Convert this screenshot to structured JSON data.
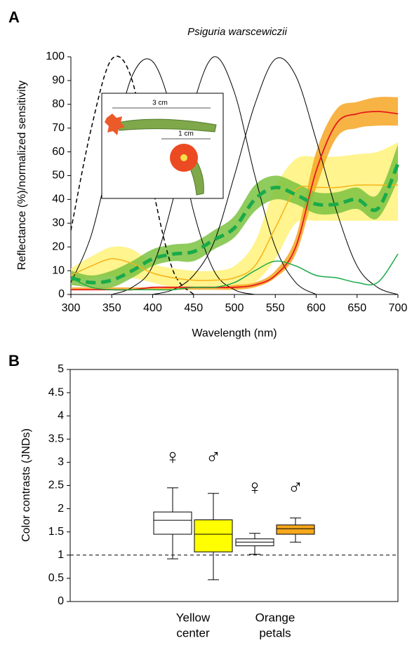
{
  "chart_data": [
    {
      "type": "line",
      "panel": "A",
      "title": "Psiguria warscewiczii",
      "xlabel": "Wavelength (nm)",
      "ylabel": "Reflectance (%)/normalized sensitivity",
      "x": [
        300,
        325,
        350,
        375,
        400,
        425,
        450,
        475,
        500,
        525,
        550,
        575,
        600,
        625,
        650,
        675,
        700
      ],
      "xlim": [
        300,
        700
      ],
      "xticks": [
        300,
        350,
        400,
        450,
        500,
        550,
        600,
        650,
        700
      ],
      "ylim": [
        0,
        100
      ],
      "yticks": [
        0,
        10,
        20,
        30,
        40,
        50,
        60,
        70,
        80,
        90,
        100
      ],
      "inset_labels": [
        "3 cm",
        "1 cm"
      ],
      "series": [
        {
          "color": "#000000",
          "dash": true,
          "width": 1.5,
          "values": [
            27,
            70,
            99,
            90,
            45,
            10,
            0,
            null,
            null,
            null,
            null,
            null,
            null,
            null,
            null,
            null,
            null
          ]
        },
        {
          "color": "#000000",
          "width": 1,
          "values": [
            5,
            25,
            60,
            92,
            98,
            75,
            35,
            10,
            2,
            0,
            null,
            null,
            null,
            null,
            null,
            null,
            null
          ]
        },
        {
          "color": "#000000",
          "width": 1,
          "values": [
            null,
            null,
            0,
            3,
            12,
            40,
            80,
            100,
            85,
            50,
            20,
            5,
            0,
            null,
            null,
            null,
            null
          ]
        },
        {
          "color": "#000000",
          "width": 1,
          "values": [
            null,
            null,
            null,
            null,
            0,
            2,
            8,
            22,
            50,
            80,
            99,
            92,
            65,
            35,
            12,
            3,
            0
          ]
        },
        {
          "color": "#f5b31a",
          "band_color": "#fff27a",
          "width": 1.5,
          "values": [
            8,
            12,
            15,
            13,
            9,
            7,
            6,
            6,
            7,
            12,
            28,
            44,
            45,
            45,
            46,
            46,
            46
          ],
          "lower": [
            5,
            7,
            8,
            7,
            5,
            3,
            3,
            3,
            3,
            5,
            15,
            30,
            31,
            31,
            31,
            31,
            31
          ],
          "upper": [
            11,
            16,
            20,
            19,
            13,
            11,
            10,
            10,
            12,
            22,
            45,
            57,
            58,
            58,
            59,
            60,
            64
          ]
        },
        {
          "color": "#e8191c",
          "band_color": "#f6a623",
          "width": 1.8,
          "values": [
            2,
            2,
            2,
            2,
            3,
            3,
            3,
            3,
            3,
            4,
            8,
            20,
            52,
            72,
            76,
            77,
            76
          ],
          "lower": [
            2,
            2,
            2,
            2,
            2,
            2,
            2,
            2,
            2,
            3,
            7,
            17,
            45,
            66,
            70,
            71,
            71
          ],
          "upper": [
            3,
            3,
            3,
            3,
            3,
            3,
            3,
            3,
            4,
            5,
            10,
            24,
            60,
            78,
            81,
            83,
            83
          ]
        },
        {
          "color": "#1aaa4a",
          "width": 1.5,
          "values": [
            7,
            3,
            2,
            2,
            2,
            2,
            3,
            3,
            5,
            10,
            14,
            12,
            8,
            7,
            5,
            5,
            17
          ]
        },
        {
          "color": "#1aaa4a",
          "band_color": "#7cc242",
          "dash": true,
          "width": 5,
          "values": [
            7,
            5,
            6,
            10,
            15,
            17,
            18,
            23,
            28,
            40,
            45,
            42,
            38,
            38,
            40,
            36,
            55
          ],
          "lower": [
            4,
            3,
            3,
            7,
            12,
            14,
            14,
            19,
            24,
            35,
            40,
            38,
            34,
            34,
            36,
            32,
            48
          ],
          "upper": [
            10,
            8,
            10,
            14,
            19,
            21,
            22,
            27,
            33,
            46,
            50,
            47,
            43,
            43,
            45,
            42,
            63
          ]
        }
      ]
    },
    {
      "type": "box",
      "panel": "B",
      "ylabel": "Color contrasts (JNDs)",
      "ylim": [
        0,
        5
      ],
      "yticks": [
        0,
        0.5,
        1,
        1.5,
        2,
        2.5,
        3,
        3.5,
        4,
        4.5,
        5
      ],
      "reference_line": 1,
      "categories": [
        [
          "Yellow",
          "center"
        ],
        [
          "Orange",
          "petals"
        ]
      ],
      "boxes": [
        {
          "category": 0,
          "symbol": "♀",
          "color": "#ffffff",
          "min": 0.92,
          "q1": 1.45,
          "median": 1.75,
          "q3": 1.93,
          "max": 2.45
        },
        {
          "category": 0,
          "symbol": "♂",
          "color": "#ffff00",
          "min": 0.47,
          "q1": 1.07,
          "median": 1.45,
          "q3": 1.76,
          "max": 2.33
        },
        {
          "category": 1,
          "symbol": "♀",
          "color": "#ffffff",
          "min": 1.02,
          "q1": 1.2,
          "median": 1.28,
          "q3": 1.35,
          "max": 1.47
        },
        {
          "category": 1,
          "symbol": "♂",
          "color": "#f6a81d",
          "min": 1.28,
          "q1": 1.45,
          "median": 1.57,
          "q3": 1.65,
          "max": 1.8
        }
      ]
    }
  ]
}
